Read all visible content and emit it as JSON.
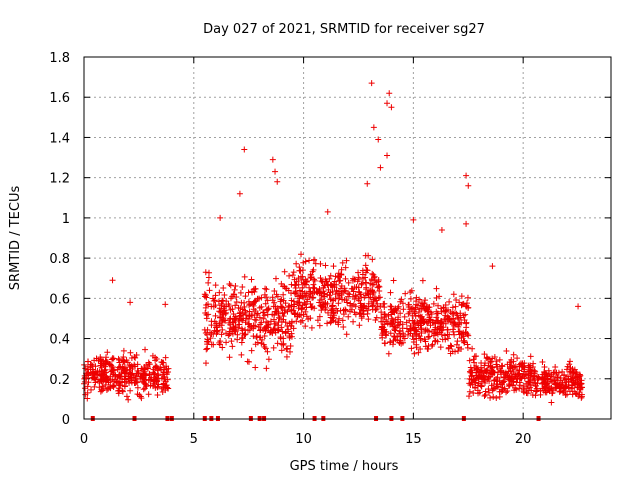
{
  "chart_data": {
    "type": "scatter",
    "title": "Day 027 of 2021, SRMTID for receiver sg27",
    "xlabel": "GPS time / hours",
    "ylabel": "SRMTID / TECUs",
    "xlim": [
      0,
      24
    ],
    "ylim": [
      0,
      1.8
    ],
    "x_ticks": [
      0,
      5,
      10,
      15,
      20
    ],
    "x_tick_labels": [
      "0",
      "5",
      "10",
      "15",
      "20"
    ],
    "y_ticks": [
      0,
      0.2,
      0.4,
      0.6,
      0.8,
      1.0,
      1.2,
      1.4,
      1.6,
      1.8
    ],
    "y_tick_labels": [
      "0",
      "0.2",
      "0.4",
      "0.6",
      "0.8",
      "1",
      "1.2",
      "1.4",
      "1.6",
      "1.8"
    ],
    "grid": true,
    "marker": "plus",
    "color": "#ee0000",
    "segments": [
      {
        "x_start": 0.0,
        "x_end": 3.85,
        "base": 0.22,
        "spread": 0.12
      },
      {
        "x_start": 5.5,
        "x_end": 9.5,
        "base": 0.5,
        "spread": 0.22
      },
      {
        "x_start": 9.5,
        "x_end": 13.5,
        "base": 0.62,
        "spread": 0.2
      },
      {
        "x_start": 13.5,
        "x_end": 17.5,
        "base": 0.48,
        "spread": 0.18
      },
      {
        "x_start": 17.5,
        "x_end": 20.5,
        "base": 0.22,
        "spread": 0.12
      },
      {
        "x_start": 20.5,
        "x_end": 22.7,
        "base": 0.18,
        "spread": 0.1
      }
    ],
    "outliers": [
      {
        "x": 7.3,
        "y": 1.34
      },
      {
        "x": 8.6,
        "y": 1.29
      },
      {
        "x": 8.7,
        "y": 1.23
      },
      {
        "x": 8.8,
        "y": 1.18
      },
      {
        "x": 7.1,
        "y": 1.12
      },
      {
        "x": 12.9,
        "y": 1.17
      },
      {
        "x": 13.2,
        "y": 1.45
      },
      {
        "x": 13.1,
        "y": 1.67
      },
      {
        "x": 13.4,
        "y": 1.39
      },
      {
        "x": 13.9,
        "y": 1.62
      },
      {
        "x": 14.0,
        "y": 1.55
      },
      {
        "x": 13.8,
        "y": 1.57
      },
      {
        "x": 13.8,
        "y": 1.31
      },
      {
        "x": 13.5,
        "y": 1.25
      },
      {
        "x": 17.4,
        "y": 1.21
      },
      {
        "x": 17.5,
        "y": 1.16
      },
      {
        "x": 17.4,
        "y": 0.97
      },
      {
        "x": 15.0,
        "y": 0.99
      },
      {
        "x": 16.3,
        "y": 0.94
      },
      {
        "x": 11.1,
        "y": 1.03
      },
      {
        "x": 6.2,
        "y": 1.0
      },
      {
        "x": 3.7,
        "y": 0.57
      },
      {
        "x": 1.3,
        "y": 0.69
      },
      {
        "x": 2.1,
        "y": 0.58
      },
      {
        "x": 18.6,
        "y": 0.76
      },
      {
        "x": 22.5,
        "y": 0.56
      }
    ],
    "gap_markers_x": [
      0.4,
      2.3,
      3.8,
      4.0,
      5.5,
      5.8,
      6.1,
      7.6,
      8.0,
      8.2,
      10.5,
      10.9,
      13.3,
      14.0,
      14.5,
      17.3,
      20.7
    ]
  }
}
